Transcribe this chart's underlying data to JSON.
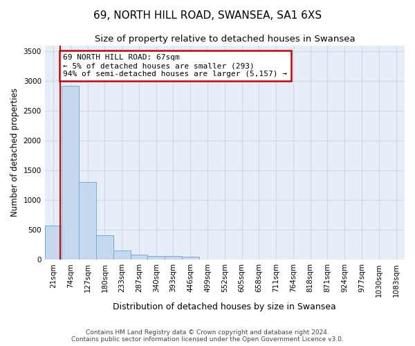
{
  "title": "69, NORTH HILL ROAD, SWANSEA, SA1 6XS",
  "subtitle": "Size of property relative to detached houses in Swansea",
  "xlabel": "Distribution of detached houses by size in Swansea",
  "ylabel": "Number of detached properties",
  "bin_labels": [
    "21sqm",
    "74sqm",
    "127sqm",
    "180sqm",
    "233sqm",
    "287sqm",
    "340sqm",
    "393sqm",
    "446sqm",
    "499sqm",
    "552sqm",
    "605sqm",
    "658sqm",
    "711sqm",
    "764sqm",
    "818sqm",
    "871sqm",
    "924sqm",
    "977sqm",
    "1030sqm",
    "1083sqm"
  ],
  "bar_heights": [
    570,
    2920,
    1310,
    410,
    155,
    80,
    60,
    55,
    45,
    0,
    0,
    0,
    0,
    0,
    0,
    0,
    0,
    0,
    0,
    0,
    0
  ],
  "bar_color": "#c5d8ed",
  "bar_edge_color": "#6aaed6",
  "annotation_text": "69 NORTH HILL ROAD: 67sqm\n← 5% of detached houses are smaller (293)\n94% of semi-detached houses are larger (5,157) →",
  "annotation_box_color": "#ffffff",
  "annotation_box_edge_color": "#cc0000",
  "vline_color": "#cc0000",
  "ylim": [
    0,
    3600
  ],
  "yticks": [
    0,
    500,
    1000,
    1500,
    2000,
    2500,
    3000,
    3500
  ],
  "grid_color": "#d0d8e8",
  "bg_color": "#e8eef8",
  "footer_text": "Contains HM Land Registry data © Crown copyright and database right 2024.\nContains public sector information licensed under the Open Government Licence v3.0.",
  "title_fontsize": 11,
  "subtitle_fontsize": 9.5,
  "xlabel_fontsize": 9,
  "ylabel_fontsize": 8.5,
  "tick_fontsize": 7.5,
  "footer_fontsize": 6.5,
  "annot_fontsize": 8
}
